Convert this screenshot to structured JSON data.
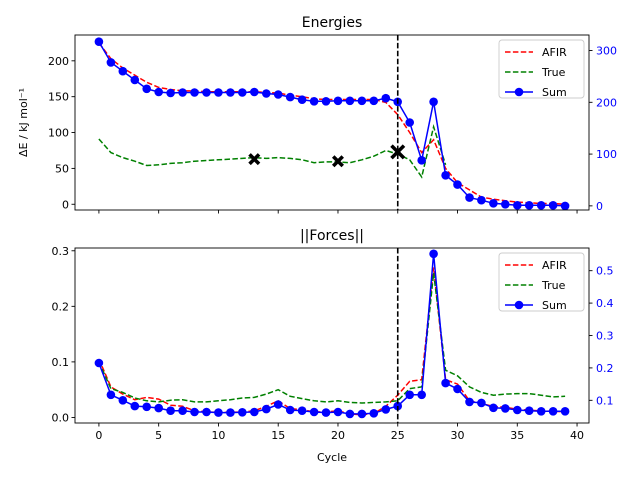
{
  "chart_data": [
    {
      "type": "line",
      "title": "Energies",
      "xlabel": "",
      "ylabel": "ΔE / kJ mol⁻¹",
      "xlim": [
        -2,
        41
      ],
      "ylim": [
        -8,
        236
      ],
      "y2lim": [
        -8,
        330
      ],
      "x_ticks": [
        0,
        5,
        10,
        15,
        20,
        25,
        30,
        35,
        40
      ],
      "y_ticks": [
        0,
        50,
        100,
        150,
        200
      ],
      "y_tick_labels": [
        "0",
        "50",
        "100",
        "150",
        "200"
      ],
      "y2_ticks": [
        0,
        100,
        200,
        300
      ],
      "y2_tick_labels": [
        "0",
        "100",
        "200",
        "300"
      ],
      "vline_x": 25,
      "legend_position": "upper right",
      "series": [
        {
          "name": "AFIR",
          "axis": "left",
          "color": "#ff0000",
          "style": "dashed",
          "x": [
            0,
            1,
            2,
            3,
            4,
            5,
            6,
            7,
            8,
            9,
            10,
            11,
            12,
            13,
            14,
            15,
            16,
            17,
            18,
            19,
            20,
            21,
            22,
            23,
            24,
            25,
            26,
            27,
            28,
            29,
            30,
            31,
            32,
            33,
            34,
            35,
            36,
            37,
            38,
            39
          ],
          "y": [
            225,
            203,
            190,
            180,
            170,
            163,
            160,
            158,
            158,
            157,
            157,
            157,
            157,
            157,
            156,
            155,
            152,
            150,
            147,
            146,
            146,
            146,
            146,
            146,
            142,
            125,
            100,
            72,
            90,
            50,
            30,
            20,
            10,
            7,
            5,
            3,
            2,
            1,
            1,
            0
          ]
        },
        {
          "name": "True",
          "axis": "left",
          "color": "#008000",
          "style": "dashed",
          "x": [
            0,
            1,
            2,
            3,
            4,
            5,
            6,
            7,
            8,
            9,
            10,
            11,
            12,
            13,
            14,
            15,
            16,
            17,
            18,
            19,
            20,
            21,
            22,
            23,
            24,
            25,
            26,
            27,
            28,
            29
          ],
          "y": [
            91,
            72,
            65,
            60,
            54,
            55,
            57,
            58,
            60,
            61,
            62,
            63,
            64,
            65,
            64,
            65,
            64,
            62,
            58,
            59,
            59,
            58,
            62,
            67,
            75,
            70,
            62,
            38,
            108,
            55
          ]
        },
        {
          "name": "Sum",
          "axis": "right",
          "color": "#0000ff",
          "style": "solid-markers",
          "x": [
            0,
            1,
            2,
            3,
            4,
            5,
            6,
            7,
            8,
            9,
            10,
            11,
            12,
            13,
            14,
            15,
            16,
            17,
            18,
            19,
            20,
            21,
            22,
            23,
            24,
            25,
            26,
            27,
            28,
            29,
            30,
            31,
            32,
            33,
            34,
            35,
            36,
            37,
            38,
            39
          ],
          "y": [
            317,
            277,
            260,
            243,
            226,
            220,
            218,
            219,
            219,
            219,
            219,
            219,
            219,
            220,
            217,
            215,
            210,
            205,
            202,
            202,
            203,
            203,
            203,
            203,
            208,
            201,
            161,
            88,
            201,
            59,
            41,
            16,
            11,
            5,
            3,
            1,
            1,
            1,
            1,
            0
          ]
        }
      ],
      "markers": {
        "style": "X",
        "color": "#000000",
        "points": [
          {
            "x": 13,
            "y": 63
          },
          {
            "x": 20,
            "y": 60
          },
          {
            "x": 25,
            "y": 73
          }
        ]
      }
    },
    {
      "type": "line",
      "title": "||Forces||",
      "xlabel": "Cycle",
      "ylabel": "",
      "xlim": [
        -2,
        41
      ],
      "ylim": [
        -0.01,
        0.305
      ],
      "y2lim": [
        0.03,
        0.57
      ],
      "x_ticks": [
        0,
        5,
        10,
        15,
        20,
        25,
        30,
        35,
        40
      ],
      "x_tick_labels": [
        "0",
        "5",
        "10",
        "15",
        "20",
        "25",
        "30",
        "35",
        "40"
      ],
      "y_ticks": [
        0,
        0.1,
        0.2,
        0.3
      ],
      "y_tick_labels": [
        "0.0",
        "0.1",
        "0.2",
        "0.3"
      ],
      "y2_ticks": [
        0.1,
        0.2,
        0.3,
        0.4,
        0.5
      ],
      "y2_tick_labels": [
        "0.1",
        "0.2",
        "0.3",
        "0.4",
        "0.5"
      ],
      "vline_x": 25,
      "legend_position": "upper right",
      "series": [
        {
          "name": "AFIR",
          "axis": "left",
          "color": "#ff0000",
          "style": "dashed",
          "x": [
            0,
            1,
            2,
            3,
            4,
            5,
            6,
            7,
            8,
            9,
            10,
            11,
            12,
            13,
            14,
            15,
            16,
            17,
            18,
            19,
            20,
            21,
            22,
            23,
            24,
            25,
            26,
            27,
            28,
            29,
            30,
            31,
            32,
            33,
            34,
            35,
            36,
            37,
            38,
            39
          ],
          "y": [
            0.105,
            0.055,
            0.042,
            0.032,
            0.036,
            0.033,
            0.022,
            0.02,
            0.012,
            0.01,
            0.009,
            0.009,
            0.01,
            0.012,
            0.02,
            0.03,
            0.016,
            0.014,
            0.01,
            0.01,
            0.012,
            0.006,
            0.005,
            0.007,
            0.02,
            0.04,
            0.065,
            0.068,
            0.27,
            0.068,
            0.06,
            0.03,
            0.025,
            0.02,
            0.018,
            0.015,
            0.013,
            0.012,
            0.011,
            0.01
          ]
        },
        {
          "name": "True",
          "axis": "left",
          "color": "#008000",
          "style": "dashed",
          "x": [
            0,
            1,
            2,
            3,
            4,
            5,
            6,
            7,
            8,
            9,
            10,
            11,
            12,
            13,
            14,
            15,
            16,
            17,
            18,
            19,
            20,
            21,
            22,
            23,
            24,
            25,
            26,
            27,
            28,
            29,
            30,
            31,
            32,
            33,
            34,
            35,
            36,
            37,
            38,
            39
          ],
          "y": [
            0.1,
            0.052,
            0.045,
            0.035,
            0.03,
            0.028,
            0.031,
            0.032,
            0.028,
            0.028,
            0.03,
            0.032,
            0.035,
            0.036,
            0.042,
            0.05,
            0.038,
            0.034,
            0.03,
            0.028,
            0.03,
            0.027,
            0.026,
            0.027,
            0.028,
            0.03,
            0.052,
            0.055,
            0.26,
            0.085,
            0.075,
            0.055,
            0.045,
            0.04,
            0.042,
            0.043,
            0.043,
            0.04,
            0.037,
            0.038
          ]
        },
        {
          "name": "Sum",
          "axis": "right",
          "color": "#0000ff",
          "style": "solid-markers",
          "x": [
            0,
            1,
            2,
            3,
            4,
            5,
            6,
            7,
            8,
            9,
            10,
            11,
            12,
            13,
            14,
            15,
            16,
            17,
            18,
            19,
            20,
            21,
            22,
            23,
            24,
            25,
            26,
            27,
            28,
            29,
            30,
            31,
            32,
            33,
            34,
            35,
            36,
            37,
            38,
            39
          ],
          "y": [
            0.215,
            0.117,
            0.1,
            0.082,
            0.08,
            0.076,
            0.068,
            0.068,
            0.064,
            0.064,
            0.062,
            0.062,
            0.063,
            0.064,
            0.073,
            0.087,
            0.07,
            0.068,
            0.064,
            0.062,
            0.064,
            0.058,
            0.058,
            0.06,
            0.072,
            0.082,
            0.117,
            0.117,
            0.552,
            0.153,
            0.135,
            0.095,
            0.092,
            0.077,
            0.075,
            0.07,
            0.068,
            0.066,
            0.066,
            0.066
          ]
        }
      ]
    }
  ]
}
